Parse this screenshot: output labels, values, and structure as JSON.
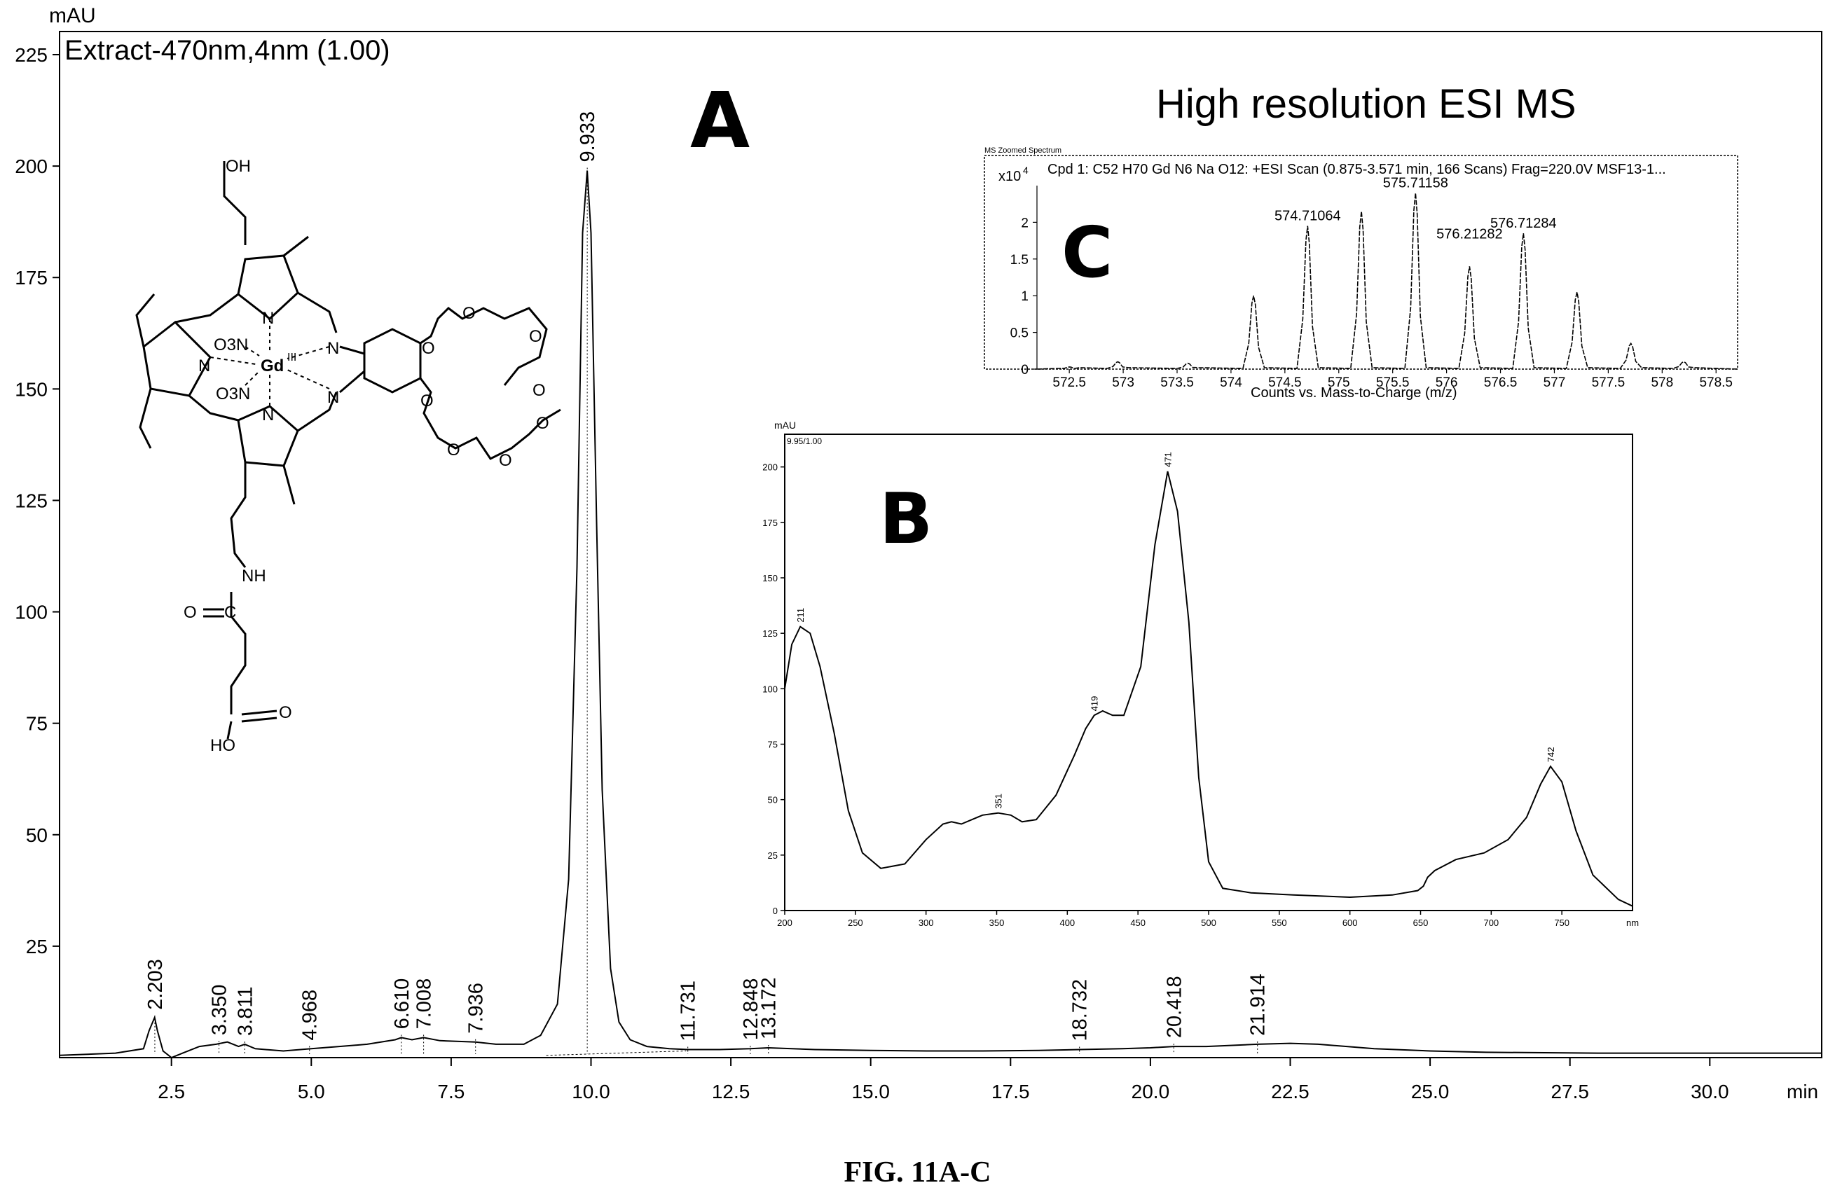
{
  "figure": {
    "caption": "FIG. 11A-C",
    "panel_a_letter": "A",
    "panel_b_letter": "B",
    "panel_c_letter": "C",
    "ms_heading": "High resolution ESI MS"
  },
  "chart_data": [
    {
      "panel": "A",
      "type": "line",
      "title": "Extract-470nm,4nm (1.00)",
      "ylabel": "mAU",
      "xlabel": "min",
      "xlim": [
        0.5,
        32.0
      ],
      "ylim": [
        0,
        225
      ],
      "xticks": [
        "2.5",
        "5.0",
        "7.5",
        "10.0",
        "12.5",
        "15.0",
        "17.5",
        "20.0",
        "22.5",
        "25.0",
        "27.5",
        "30.0"
      ],
      "yticks": [
        "25",
        "50",
        "75",
        "100",
        "125",
        "150",
        "175",
        "200",
        "225"
      ],
      "series": [
        {
          "x": [
            0.5,
            1.5,
            2.0,
            2.1,
            2.2,
            2.25,
            2.35,
            2.5,
            2.7,
            3.0,
            3.3,
            3.5,
            3.7,
            3.81,
            4.0,
            4.5,
            5.0,
            5.5,
            6.0,
            6.5,
            6.61,
            6.8,
            7.008,
            7.3,
            7.936,
            8.3,
            8.8,
            9.1,
            9.4,
            9.6,
            9.75,
            9.85,
            9.933,
            10.0,
            10.1,
            10.2,
            10.35,
            10.5,
            10.7,
            11.0,
            11.4,
            11.731,
            12.3,
            12.848,
            13.172,
            14.0,
            15.0,
            16.0,
            17.0,
            18.0,
            18.732,
            19.5,
            20.0,
            20.418,
            21.0,
            21.914,
            22.5,
            23.0,
            24.0,
            25.0,
            26.0,
            28.0,
            30.0,
            32.0
          ],
          "y": [
            0.5,
            1,
            2,
            6,
            9,
            6,
            1.5,
            0,
            1,
            2.5,
            3,
            3.5,
            2.5,
            3,
            2,
            1.5,
            2,
            2.5,
            3,
            4,
            4.5,
            4,
            4.5,
            3.8,
            3.5,
            3,
            3,
            5,
            12,
            40,
            110,
            185,
            199,
            185,
            120,
            60,
            20,
            8,
            4,
            2.5,
            2,
            1.8,
            1.8,
            2,
            2.2,
            1.8,
            1.6,
            1.5,
            1.5,
            1.6,
            1.8,
            2,
            2.2,
            2.5,
            2.5,
            3,
            3.2,
            3,
            2,
            1.5,
            1.2,
            1,
            1,
            1
          ]
        }
      ],
      "peak_labels": [
        {
          "x": 2.203,
          "label": "2.203"
        },
        {
          "x": 3.35,
          "label": "3.350"
        },
        {
          "x": 3.811,
          "label": "3.811"
        },
        {
          "x": 4.968,
          "label": "4.968"
        },
        {
          "x": 6.61,
          "label": "6.610"
        },
        {
          "x": 7.008,
          "label": "7.008"
        },
        {
          "x": 7.936,
          "label": "7.936"
        },
        {
          "x": 9.933,
          "label": "9.933"
        },
        {
          "x": 11.731,
          "label": "11.731"
        },
        {
          "x": 12.848,
          "label": "12.848"
        },
        {
          "x": 13.172,
          "label": "13.172"
        },
        {
          "x": 18.732,
          "label": "18.732"
        },
        {
          "x": 20.418,
          "label": "20.418"
        },
        {
          "x": 21.914,
          "label": "21.914"
        }
      ]
    },
    {
      "panel": "B",
      "type": "line",
      "title": "9.95/1.00",
      "ylabel": "mAU",
      "xlabel": "nm",
      "xlim": [
        200,
        800
      ],
      "ylim": [
        0,
        210
      ],
      "xticks": [
        "200",
        "250",
        "300",
        "350",
        "400",
        "450",
        "500",
        "550",
        "600",
        "650",
        "700",
        "750",
        "nm"
      ],
      "yticks": [
        "0",
        "25",
        "50",
        "75",
        "100",
        "125",
        "150",
        "175",
        "200"
      ],
      "series": [
        {
          "x": [
            200,
            205,
            211,
            218,
            225,
            235,
            245,
            255,
            268,
            285,
            300,
            312,
            318,
            325,
            340,
            351,
            360,
            368,
            378,
            392,
            405,
            413,
            419,
            425,
            432,
            440,
            452,
            462,
            471,
            478,
            486,
            493,
            500,
            510,
            530,
            560,
            600,
            630,
            648,
            652,
            655,
            660,
            675,
            695,
            712,
            725,
            735,
            742,
            750,
            760,
            772,
            790,
            800
          ],
          "y": [
            100,
            120,
            128,
            125,
            110,
            80,
            45,
            26,
            19,
            21,
            32,
            39,
            40,
            39,
            43,
            44,
            43,
            40,
            41,
            52,
            70,
            82,
            88,
            90,
            88,
            88,
            110,
            165,
            198,
            180,
            130,
            60,
            22,
            10,
            8,
            7,
            6,
            7,
            9,
            11,
            15,
            18,
            23,
            26,
            32,
            42,
            57,
            65,
            58,
            36,
            16,
            5,
            2
          ]
        }
      ],
      "peak_labels": [
        {
          "x": 211,
          "label": "211"
        },
        {
          "x": 351,
          "label": "351"
        },
        {
          "x": 419,
          "label": "419"
        },
        {
          "x": 471,
          "label": "471"
        },
        {
          "x": 742,
          "label": "742"
        }
      ]
    },
    {
      "panel": "C",
      "type": "line",
      "frame_title": "MS Zoomed Spectrum",
      "scan_info": "Cpd 1: C52 H70 Gd N6 Na O12: +ESI Scan (0.875-3.571 min, 166 Scans) Frag=220.0V MSF13-1...",
      "y_multiplier": "x10",
      "y_multiplier_exp": "4",
      "xlabel": "Counts vs. Mass-to-Charge (m/z)",
      "xlim": [
        572.2,
        578.7
      ],
      "ylim": [
        0,
        2.5
      ],
      "xticks": [
        "572.5",
        "573",
        "573.5",
        "574",
        "574.5",
        "575",
        "575.5",
        "576",
        "576.5",
        "577",
        "577.5",
        "578",
        "578.5"
      ],
      "yticks": [
        "0",
        "0.5",
        "1",
        "1.5",
        "2"
      ],
      "peaks": [
        {
          "x": 572.5,
          "y": 0.03
        },
        {
          "x": 572.95,
          "y": 0.1
        },
        {
          "x": 573.6,
          "y": 0.08
        },
        {
          "x": 574.21,
          "y": 1.0
        },
        {
          "x": 574.711,
          "y": 1.95
        },
        {
          "x": 575.21,
          "y": 2.15
        },
        {
          "x": 575.712,
          "y": 2.4
        },
        {
          "x": 576.213,
          "y": 1.4
        },
        {
          "x": 576.713,
          "y": 1.85
        },
        {
          "x": 577.21,
          "y": 1.05
        },
        {
          "x": 577.71,
          "y": 0.35
        },
        {
          "x": 578.2,
          "y": 0.1
        }
      ],
      "peak_labels": [
        {
          "x": 574.711,
          "label": "574.71064"
        },
        {
          "x": 575.712,
          "label": "575.71158"
        },
        {
          "x": 576.213,
          "label": "576.21282"
        },
        {
          "x": 576.713,
          "label": "576.71284"
        }
      ]
    }
  ],
  "structure": {
    "labels": [
      "OH",
      "O3N",
      "Gd",
      "III",
      "N",
      "N",
      "N",
      "N",
      "N",
      "N",
      "O",
      "O",
      "O",
      "O",
      "O",
      "O",
      "O",
      "O",
      "NH",
      "O",
      "C",
      "O",
      "HO"
    ]
  }
}
